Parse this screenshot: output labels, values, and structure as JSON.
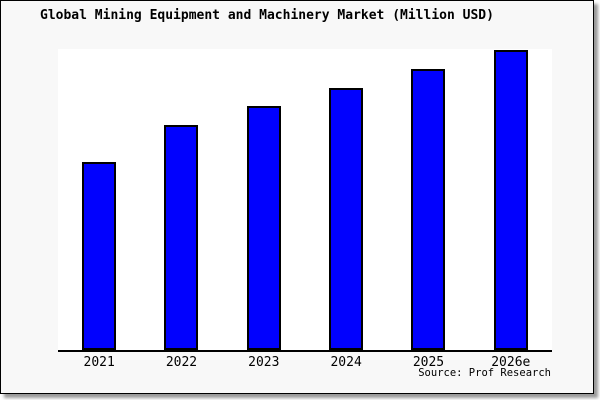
{
  "window": {
    "page_background": "#ffffff",
    "panel_background": "#f8f8f8",
    "panel_border_color": "#000000",
    "panel_shadow_color": "#9a9a9a"
  },
  "chart_data": {
    "type": "bar",
    "title": "Global Mining Equipment and Machinery Market (Million USD)",
    "categories": [
      "2021",
      "2022",
      "2023",
      "2024",
      "2025",
      "2026e"
    ],
    "values": [
      188,
      225,
      244,
      262,
      281,
      300
    ],
    "value_axis": "unlabeled - no y-axis ticks, gridlines or data labels shown; values are relative bar heights read from pixels",
    "ylim": [
      0,
      301
    ],
    "xlabel": "",
    "ylabel": "",
    "legend": false,
    "grid": false,
    "bar_color": "#0101fe",
    "bar_border_color": "#000000",
    "axis_color": "#000000",
    "plot_background": "#ffffff",
    "source": "Source: Prof Research"
  }
}
